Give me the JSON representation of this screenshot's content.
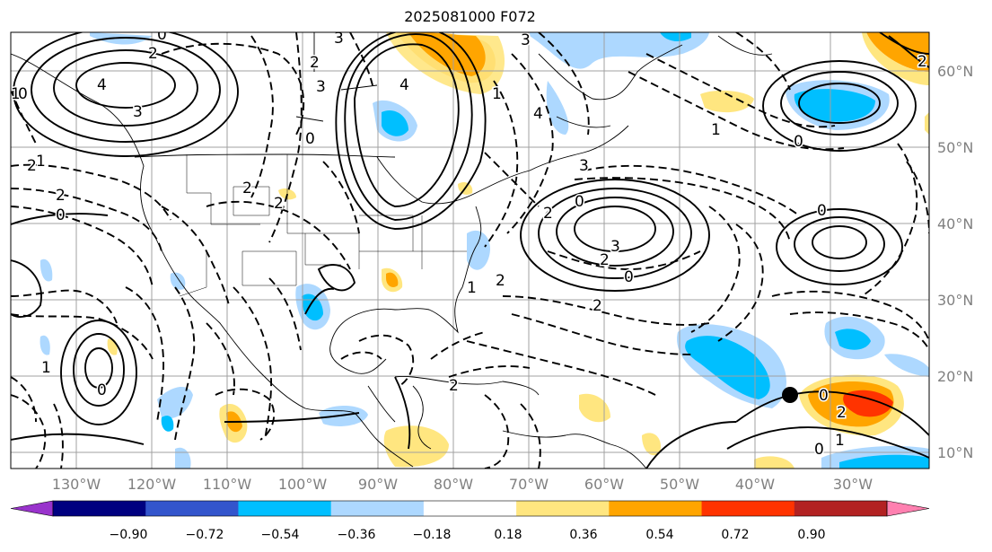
{
  "title": "2025081000 F072",
  "lon_labels": [
    "130°W",
    "120°W",
    "110°W",
    "100°W",
    "90°W",
    "80°W",
    "70°W",
    "60°W",
    "50°W",
    "40°W",
    "30°W"
  ],
  "lat_labels": [
    "60°N",
    "50°N",
    "40°N",
    "30°N",
    "20°N",
    "10°N"
  ],
  "colorbar": {
    "colors": [
      "#9933cc",
      "#000080",
      "#3355cc",
      "#00bfff",
      "#add8ff",
      "#ffffff",
      "#ffe680",
      "#ffa500",
      "#ff3300",
      "#b22222",
      "#ff80b0"
    ],
    "ticks": [
      "−0.90",
      "−0.72",
      "−0.54",
      "−0.36",
      "−0.18",
      "0.18",
      "0.36",
      "0.54",
      "0.72",
      "0.90"
    ]
  },
  "contour_labels": [
    {
      "t": "0"
    },
    {
      "t": "2"
    },
    {
      "t": "4"
    },
    {
      "t": "3"
    },
    {
      "t": "1"
    },
    {
      "t": "0"
    },
    {
      "t": "2"
    },
    {
      "t": "1"
    },
    {
      "t": "2"
    },
    {
      "t": "0"
    },
    {
      "t": "3"
    },
    {
      "t": "2"
    },
    {
      "t": "3"
    },
    {
      "t": "0"
    },
    {
      "t": "4"
    },
    {
      "t": "2"
    },
    {
      "t": "2"
    },
    {
      "t": "3"
    },
    {
      "t": "1"
    },
    {
      "t": "4"
    },
    {
      "t": "3"
    },
    {
      "t": "0"
    },
    {
      "t": "2"
    },
    {
      "t": "3"
    },
    {
      "t": "2"
    },
    {
      "t": "2"
    },
    {
      "t": "0"
    },
    {
      "t": "1"
    },
    {
      "t": "2"
    },
    {
      "t": "2"
    },
    {
      "t": "0"
    },
    {
      "t": "1"
    },
    {
      "t": "0"
    },
    {
      "t": "0"
    },
    {
      "t": "1"
    },
    {
      "t": "0"
    },
    {
      "t": "2"
    },
    {
      "t": "2"
    },
    {
      "t": "0"
    },
    {
      "t": "1"
    }
  ],
  "marker_color": "#000000"
}
